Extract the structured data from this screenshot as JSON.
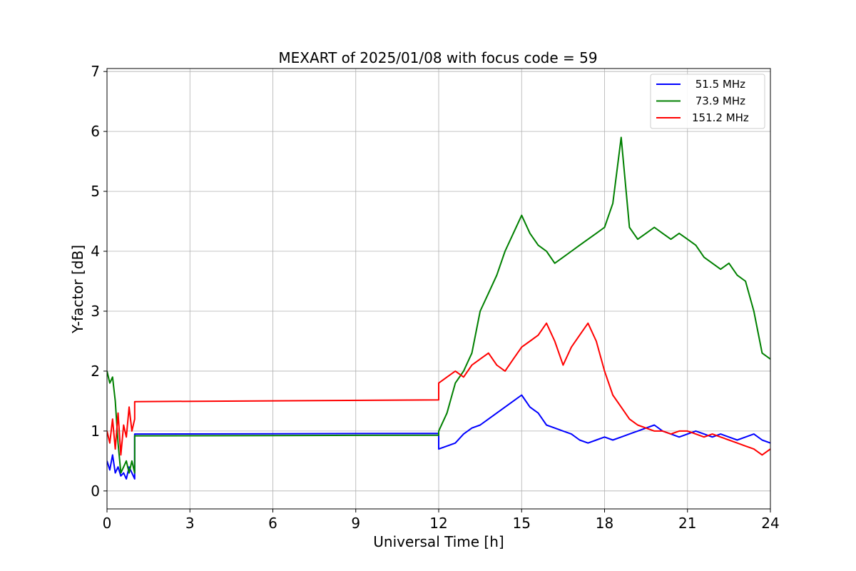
{
  "chart_data": {
    "type": "line",
    "title": "MEXART of 2025/01/08 with focus code = 59",
    "xlabel": "Universal Time [h]",
    "ylabel": "Y-factor [dB]",
    "xlim": [
      0,
      24
    ],
    "ylim": [
      -0.3,
      7.05
    ],
    "xticks": [
      0,
      3,
      6,
      9,
      12,
      15,
      18,
      21,
      24
    ],
    "yticks": [
      0,
      1,
      2,
      3,
      4,
      5,
      6,
      7
    ],
    "grid": true,
    "legend_position": "top-right",
    "series": [
      {
        "name": " 51.5 MHz",
        "color": "#0000ff",
        "x": [
          0.0,
          0.1,
          0.2,
          0.3,
          0.4,
          0.5,
          0.6,
          0.7,
          0.8,
          0.9,
          1.0,
          1.0,
          12.0,
          12.0,
          12.3,
          12.6,
          12.9,
          13.2,
          13.5,
          13.8,
          14.1,
          14.4,
          14.7,
          15.0,
          15.3,
          15.6,
          15.9,
          16.2,
          16.5,
          16.8,
          17.1,
          17.4,
          17.7,
          18.0,
          18.3,
          18.6,
          18.9,
          19.2,
          19.5,
          19.8,
          20.1,
          20.4,
          20.7,
          21.0,
          21.3,
          21.6,
          21.9,
          22.2,
          22.5,
          22.8,
          23.1,
          23.4,
          23.7,
          24.0
        ],
        "y": [
          0.5,
          0.35,
          0.6,
          0.3,
          0.4,
          0.25,
          0.3,
          0.2,
          0.4,
          0.3,
          0.2,
          0.95,
          0.96,
          0.7,
          0.75,
          0.8,
          0.95,
          1.05,
          1.1,
          1.2,
          1.3,
          1.4,
          1.5,
          1.6,
          1.4,
          1.3,
          1.1,
          1.05,
          1.0,
          0.95,
          0.85,
          0.8,
          0.85,
          0.9,
          0.85,
          0.9,
          0.95,
          1.0,
          1.05,
          1.1,
          1.0,
          0.95,
          0.9,
          0.95,
          1.0,
          0.95,
          0.9,
          0.95,
          0.9,
          0.85,
          0.9,
          0.95,
          0.85,
          0.8
        ]
      },
      {
        "name": " 73.9 MHz",
        "color": "#008000",
        "x": [
          0.0,
          0.1,
          0.2,
          0.3,
          0.4,
          0.5,
          0.6,
          0.7,
          0.8,
          0.9,
          1.0,
          1.0,
          12.0,
          12.0,
          12.3,
          12.6,
          12.9,
          13.2,
          13.5,
          13.8,
          14.1,
          14.4,
          14.7,
          15.0,
          15.3,
          15.6,
          15.9,
          16.2,
          16.5,
          16.8,
          17.1,
          17.4,
          17.7,
          18.0,
          18.3,
          18.6,
          18.9,
          19.2,
          19.5,
          19.8,
          20.1,
          20.4,
          20.7,
          21.0,
          21.3,
          21.6,
          21.9,
          22.2,
          22.5,
          22.8,
          23.1,
          23.4,
          23.7,
          24.0
        ],
        "y": [
          2.0,
          1.8,
          1.9,
          1.5,
          0.8,
          0.3,
          0.4,
          0.5,
          0.3,
          0.5,
          0.3,
          0.92,
          0.93,
          1.0,
          1.3,
          1.8,
          2.0,
          2.3,
          3.0,
          3.3,
          3.6,
          4.0,
          4.3,
          4.6,
          4.3,
          4.1,
          4.0,
          3.8,
          3.9,
          4.0,
          4.1,
          4.2,
          4.3,
          4.4,
          4.8,
          5.9,
          4.4,
          4.2,
          4.3,
          4.4,
          4.3,
          4.2,
          4.3,
          4.2,
          4.1,
          3.9,
          3.8,
          3.7,
          3.8,
          3.6,
          3.5,
          3.0,
          2.3,
          2.2
        ]
      },
      {
        "name": "151.2 MHz",
        "color": "#ff0000",
        "x": [
          0.0,
          0.1,
          0.2,
          0.3,
          0.4,
          0.5,
          0.6,
          0.7,
          0.8,
          0.9,
          1.0,
          1.0,
          12.0,
          12.0,
          12.3,
          12.6,
          12.9,
          13.2,
          13.5,
          13.8,
          14.1,
          14.4,
          14.7,
          15.0,
          15.3,
          15.6,
          15.9,
          16.2,
          16.5,
          16.8,
          17.1,
          17.4,
          17.7,
          18.0,
          18.3,
          18.6,
          18.9,
          19.2,
          19.5,
          19.8,
          20.1,
          20.4,
          20.7,
          21.0,
          21.3,
          21.6,
          21.9,
          22.2,
          22.5,
          22.8,
          23.1,
          23.4,
          23.7,
          24.0
        ],
        "y": [
          1.0,
          0.8,
          1.2,
          0.7,
          1.3,
          0.6,
          1.1,
          0.9,
          1.4,
          1.0,
          1.2,
          1.49,
          1.52,
          1.8,
          1.9,
          2.0,
          1.9,
          2.1,
          2.2,
          2.3,
          2.1,
          2.0,
          2.2,
          2.4,
          2.5,
          2.6,
          2.8,
          2.5,
          2.1,
          2.4,
          2.6,
          2.8,
          2.5,
          2.0,
          1.6,
          1.4,
          1.2,
          1.1,
          1.05,
          1.0,
          1.0,
          0.95,
          1.0,
          1.0,
          0.95,
          0.9,
          0.95,
          0.9,
          0.85,
          0.8,
          0.75,
          0.7,
          0.6,
          0.7
        ]
      }
    ]
  }
}
